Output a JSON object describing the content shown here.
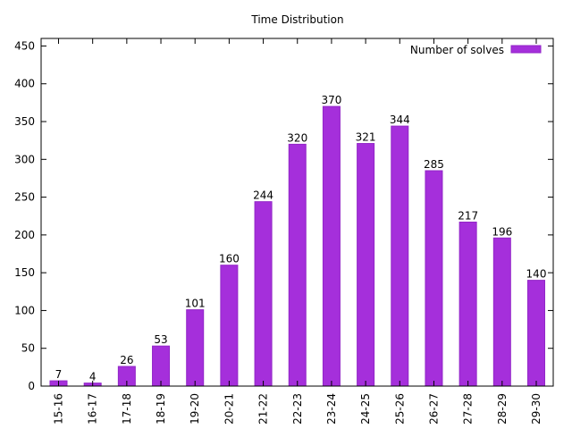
{
  "chart_data": {
    "type": "bar",
    "title": "Time Distribution",
    "xlabel": "",
    "ylabel": "",
    "categories": [
      "15-16",
      "16-17",
      "17-18",
      "18-19",
      "19-20",
      "20-21",
      "21-22",
      "22-23",
      "23-24",
      "24-25",
      "25-26",
      "26-27",
      "27-28",
      "28-29",
      "29-30"
    ],
    "series": [
      {
        "name": "Number of solves",
        "values": [
          7,
          4,
          26,
          53,
          101,
          160,
          244,
          320,
          370,
          321,
          344,
          285,
          217,
          196,
          140
        ],
        "color": "#a52fdb"
      }
    ],
    "ylim": [
      0,
      460
    ],
    "yticks": [
      0,
      50,
      100,
      150,
      200,
      250,
      300,
      350,
      400,
      450
    ],
    "legend_position": "top-right",
    "grid": false,
    "data_labels": true
  }
}
